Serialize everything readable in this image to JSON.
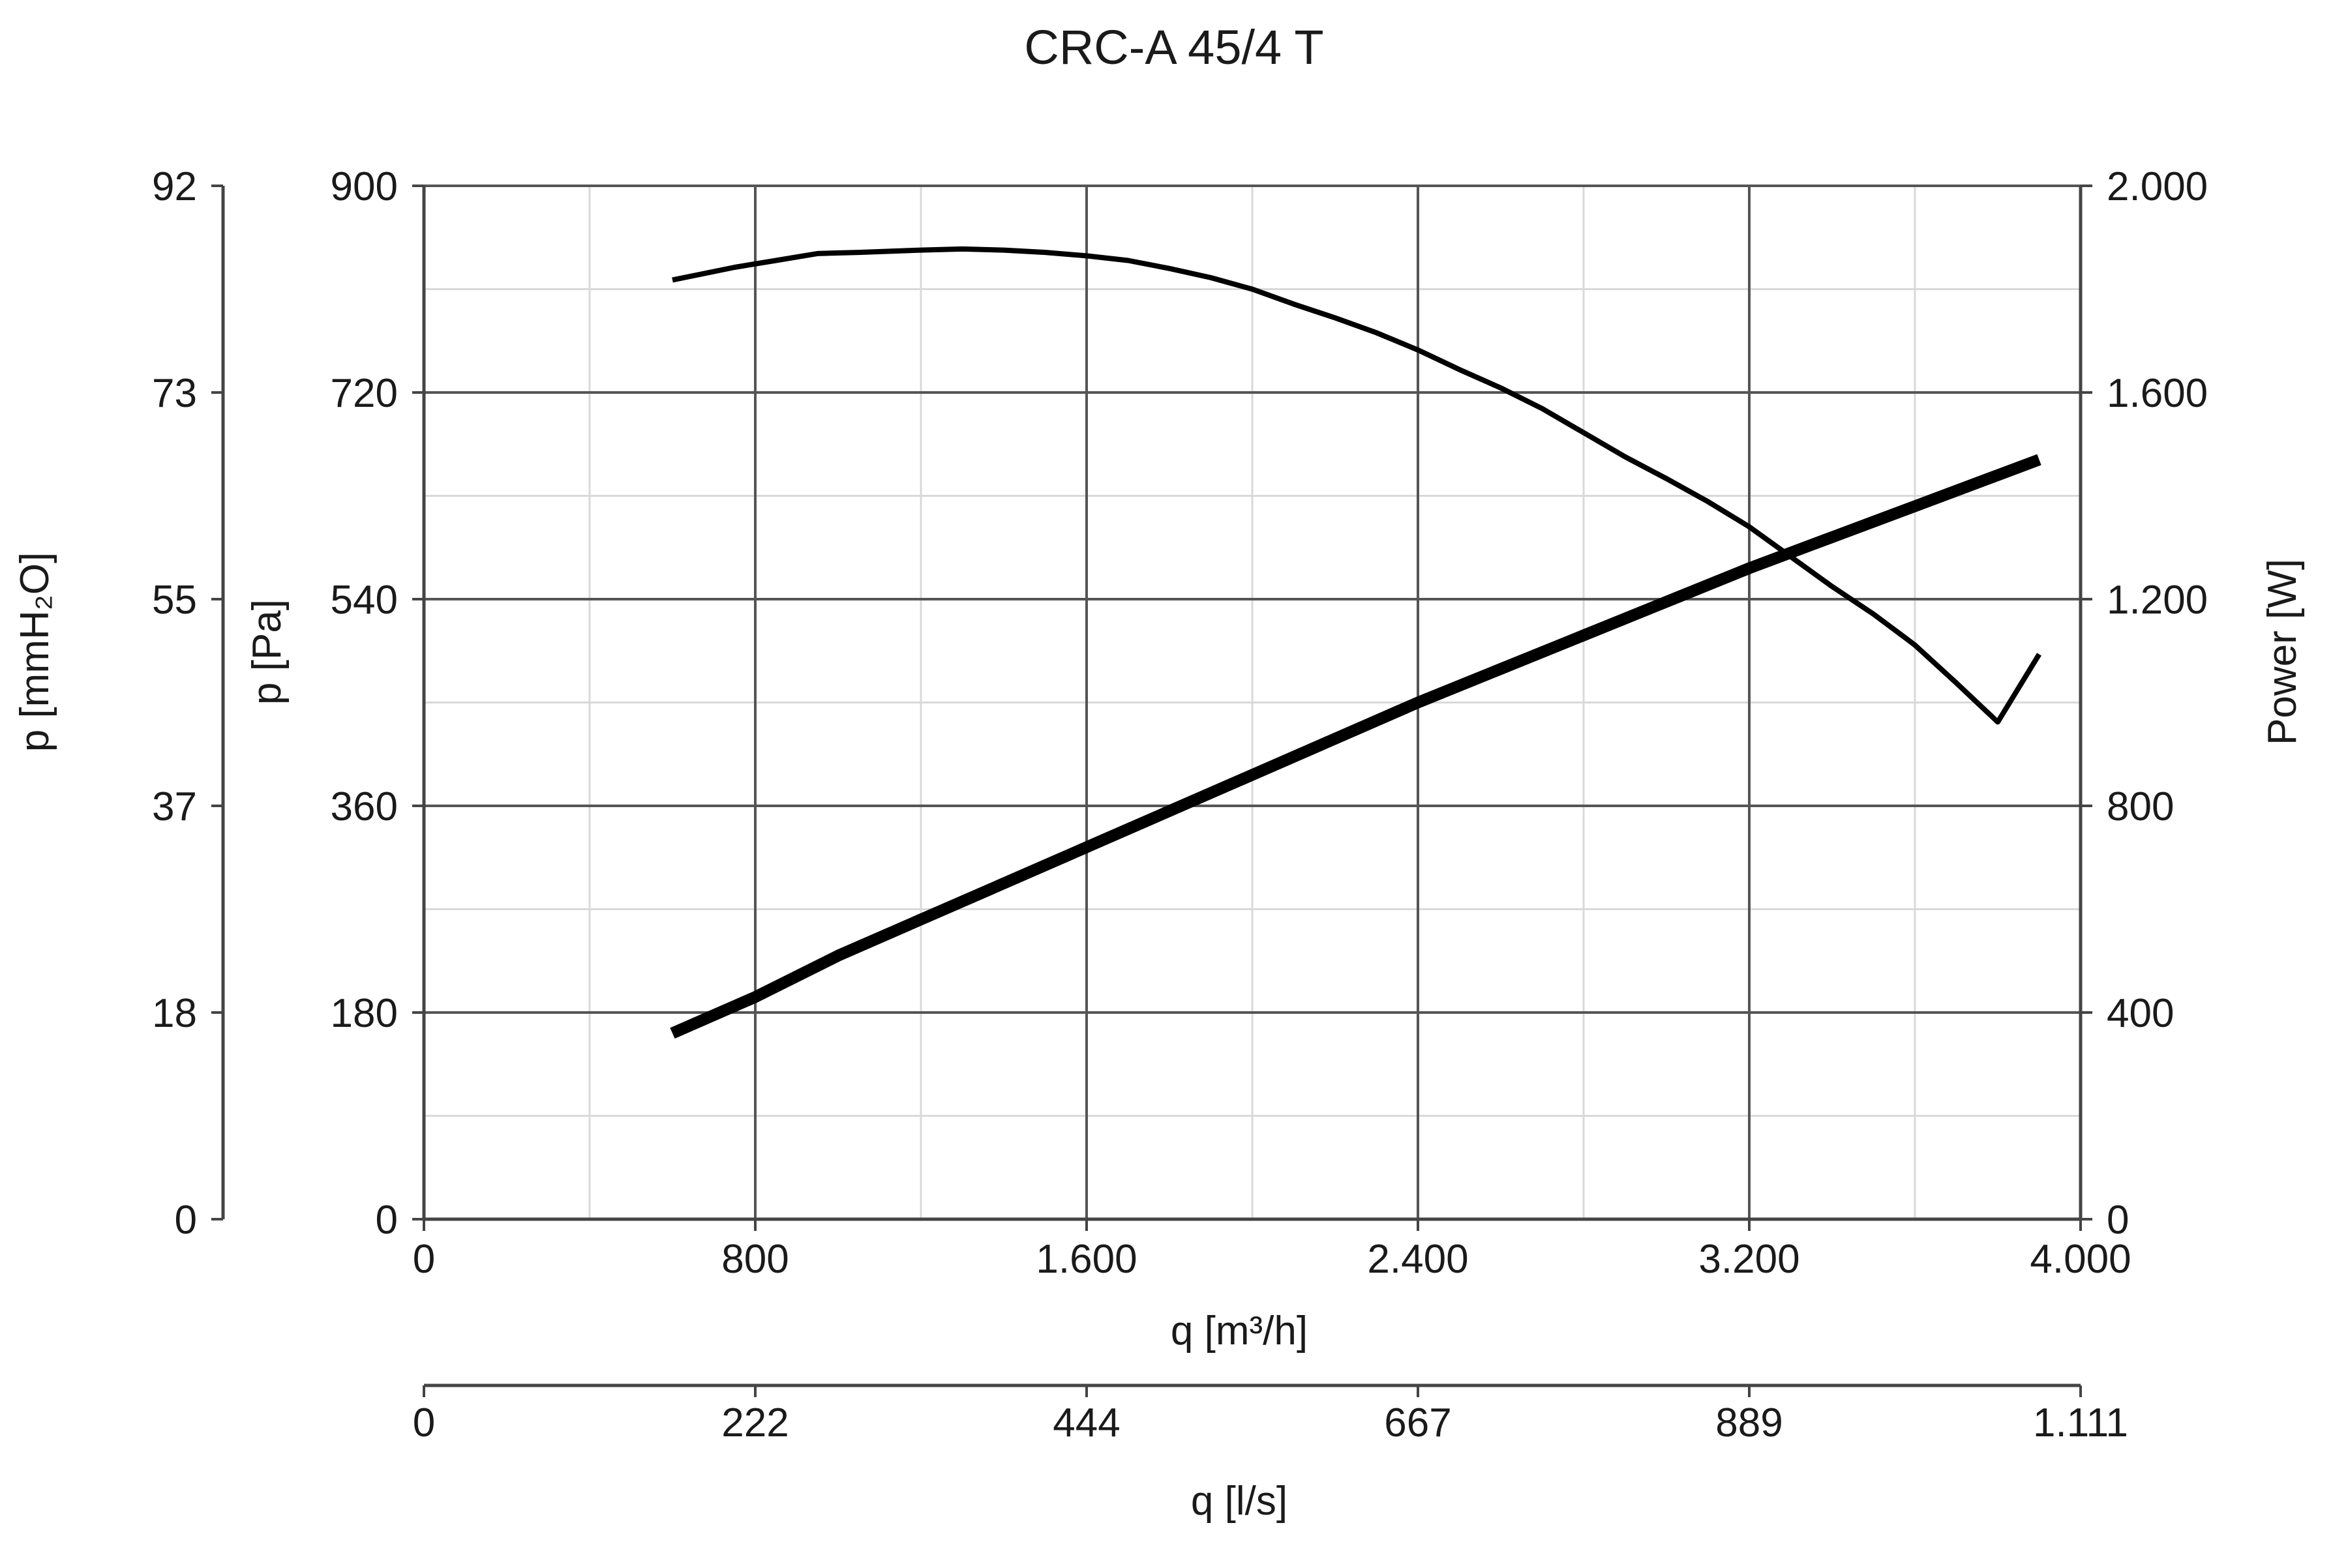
{
  "chart_data": {
    "type": "line",
    "title": "CRC-A 45/4 T",
    "x_axis": {
      "label": "q [m³/h]",
      "range": [
        0,
        4000
      ],
      "ticks": [
        0,
        800,
        1600,
        2400,
        3200,
        4000
      ],
      "tick_labels": [
        "0",
        "800",
        "1.600",
        "2.400",
        "3.200",
        "4.000"
      ]
    },
    "x_axis_secondary": {
      "label": "q [l/s]",
      "tick_labels": [
        "0",
        "222",
        "444",
        "667",
        "889",
        "1.111"
      ]
    },
    "y_axis_left": {
      "label": "p [Pa]",
      "range": [
        0,
        900
      ],
      "ticks": [
        0,
        180,
        360,
        540,
        720,
        900
      ],
      "tick_labels": [
        "0",
        "180",
        "360",
        "540",
        "720",
        "900"
      ]
    },
    "y_axis_left_outer": {
      "label": "p [mmH₂O]",
      "tick_labels": [
        "0",
        "18",
        "37",
        "55",
        "73",
        "92"
      ]
    },
    "y_axis_right": {
      "label": "Power [W]",
      "range": [
        0,
        2000
      ],
      "ticks": [
        0,
        400,
        800,
        1200,
        1600,
        2000
      ],
      "tick_labels": [
        "0",
        "400",
        "800",
        "1.200",
        "1.600",
        "2.000"
      ]
    },
    "grid": true,
    "series": [
      {
        "axis": "left",
        "color": "#000000",
        "x": [
          600,
          750,
          850,
          950,
          1050,
          1200,
          1300,
          1400,
          1500,
          1600,
          1700,
          1800,
          1900,
          2000,
          2100,
          2200,
          2300,
          2400,
          2500,
          2600,
          2700,
          2800,
          2900,
          3000,
          3100,
          3200,
          3300,
          3400,
          3500,
          3600,
          3700,
          3800,
          3900
        ],
        "values": [
          818,
          829,
          835,
          841,
          842,
          844,
          845,
          844,
          842,
          839,
          835,
          828,
          820,
          810,
          797,
          785,
          772,
          757,
          740,
          724,
          706,
          685,
          664,
          645,
          625,
          603,
          577,
          551,
          527,
          500,
          467,
          433,
          492
        ]
      },
      {
        "axis": "right",
        "color": "#000000",
        "x": [
          600,
          800,
          1000,
          1200,
          1400,
          1600,
          1800,
          2000,
          2200,
          2400,
          2600,
          2800,
          3000,
          3200,
          3400,
          3600,
          3800,
          3900
        ],
        "values": [
          360,
          430,
          510,
          580,
          650,
          720,
          790,
          860,
          930,
          1000,
          1065,
          1130,
          1195,
          1260,
          1320,
          1380,
          1440,
          1470
        ]
      }
    ]
  }
}
